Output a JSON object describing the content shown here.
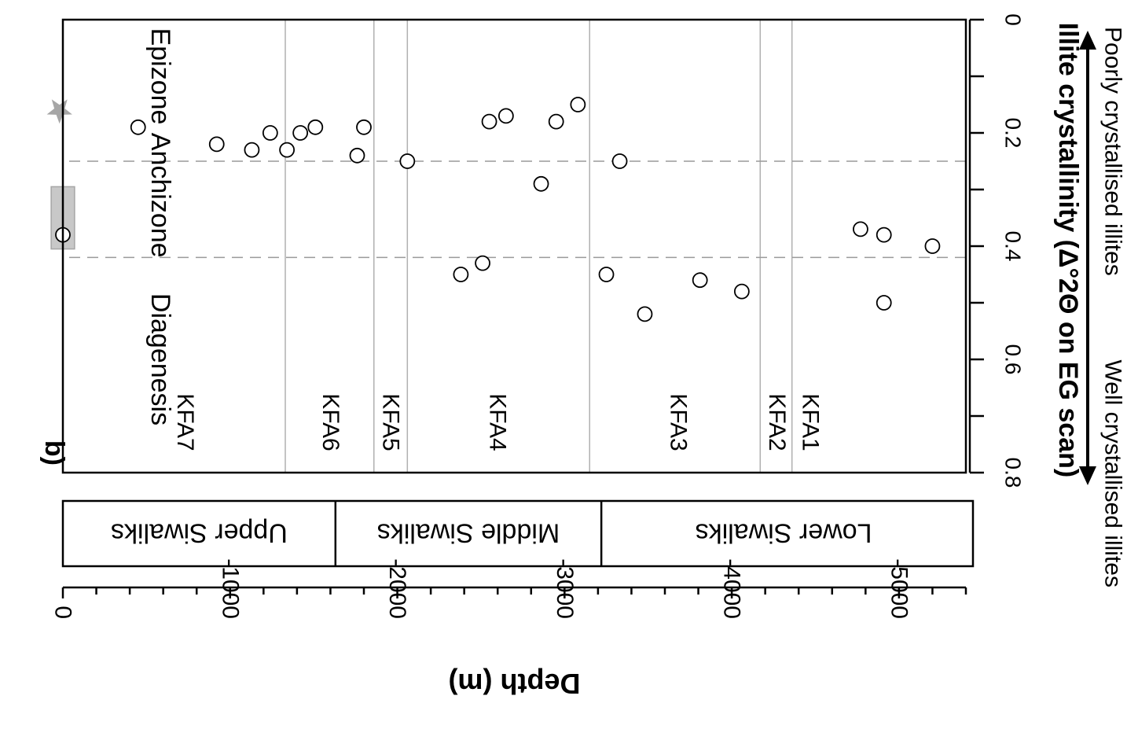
{
  "panel_label": "b)",
  "x_axis": {
    "title": "Depth (m)",
    "min": 0,
    "max": -5400,
    "major_ticks": [
      0,
      -1000,
      -2000,
      -3000,
      -4000,
      -5000
    ],
    "minor_step": 200,
    "tick_labels": [
      "0",
      "-1000",
      "-2000",
      "-3000",
      "-4000",
      "-5000"
    ]
  },
  "y_axis": {
    "title": "Illite crystallinity (Δ°2Θ on EG scan)",
    "min": 0,
    "max": 0.8,
    "major_ticks": [
      0,
      0.2,
      0.4,
      0.6,
      0.8
    ],
    "minor_step": 0.1,
    "tick_labels": [
      "0",
      "0.2",
      "0.4",
      "0.6",
      "0.8"
    ],
    "low_end_label": "Well crystallised illites",
    "high_end_label": "Poorly crystallised illites"
  },
  "formations": [
    {
      "name": "Upper Siwaliks",
      "from": 0,
      "to": -1630
    },
    {
      "name": "Middle Siwaliks",
      "from": -1630,
      "to": -3220
    },
    {
      "name": "Lower Siwaliks",
      "from": -3220,
      "to": -5400
    }
  ],
  "facies_boundaries": [
    -1330,
    -1860,
    -2060,
    -3150,
    -4170,
    -4360
  ],
  "facies_labels": [
    {
      "name": "KFA7",
      "depth": -730
    },
    {
      "name": "KFA6",
      "depth": -1600
    },
    {
      "name": "KFA5",
      "depth": -1960
    },
    {
      "name": "KFA4",
      "depth": -2600
    },
    {
      "name": "KFA3",
      "depth": -3680
    },
    {
      "name": "KFA2",
      "depth": -4270
    },
    {
      "name": "KFA1",
      "depth": -4470
    }
  ],
  "zone_limits": [
    0.25,
    0.42
  ],
  "zones": [
    {
      "name": "Epizone",
      "center": 0.1
    },
    {
      "name": "Anchizone",
      "center": 0.31
    },
    {
      "name": "Diagenesis",
      "center": 0.6
    }
  ],
  "chart_data": {
    "type": "scatter",
    "x_label": "Depth (m)",
    "y_label": "Illite crystallinity (Δ°2Θ on EG scan)",
    "x_range": [
      0,
      -5400
    ],
    "y_range": [
      0,
      0.8
    ],
    "points": [
      {
        "x": 0,
        "y": 0.38
      },
      {
        "x": -450,
        "y": 0.19
      },
      {
        "x": -920,
        "y": 0.22
      },
      {
        "x": -1130,
        "y": 0.23
      },
      {
        "x": -1240,
        "y": 0.2
      },
      {
        "x": -1340,
        "y": 0.23
      },
      {
        "x": -1420,
        "y": 0.2
      },
      {
        "x": -1510,
        "y": 0.19
      },
      {
        "x": -1760,
        "y": 0.24
      },
      {
        "x": -1800,
        "y": 0.19
      },
      {
        "x": -2060,
        "y": 0.25
      },
      {
        "x": -2380,
        "y": 0.45
      },
      {
        "x": -2510,
        "y": 0.43
      },
      {
        "x": -2550,
        "y": 0.18
      },
      {
        "x": -2650,
        "y": 0.17
      },
      {
        "x": -2860,
        "y": 0.29
      },
      {
        "x": -2950,
        "y": 0.18
      },
      {
        "x": -3080,
        "y": 0.15
      },
      {
        "x": -3250,
        "y": 0.45
      },
      {
        "x": -3330,
        "y": 0.25
      },
      {
        "x": -3480,
        "y": 0.52
      },
      {
        "x": -3810,
        "y": 0.46
      },
      {
        "x": -4060,
        "y": 0.48
      },
      {
        "x": -4770,
        "y": 0.37
      },
      {
        "x": -4910,
        "y": 0.38
      },
      {
        "x": -4910,
        "y": 0.5
      },
      {
        "x": -5200,
        "y": 0.4
      }
    ],
    "highlight_box": {
      "x": [
        70,
        -70
      ],
      "y": [
        0.295,
        0.405
      ]
    },
    "star_marker": {
      "x": 20,
      "y": 0.16
    }
  },
  "colors": {
    "axis": "#000000",
    "boundary": "#b0b0b0",
    "dashed": "#9a9a9a",
    "box_fill": "#c8c8c8",
    "box_stroke": "#a6a6a6",
    "star": "#a6a6a6"
  }
}
